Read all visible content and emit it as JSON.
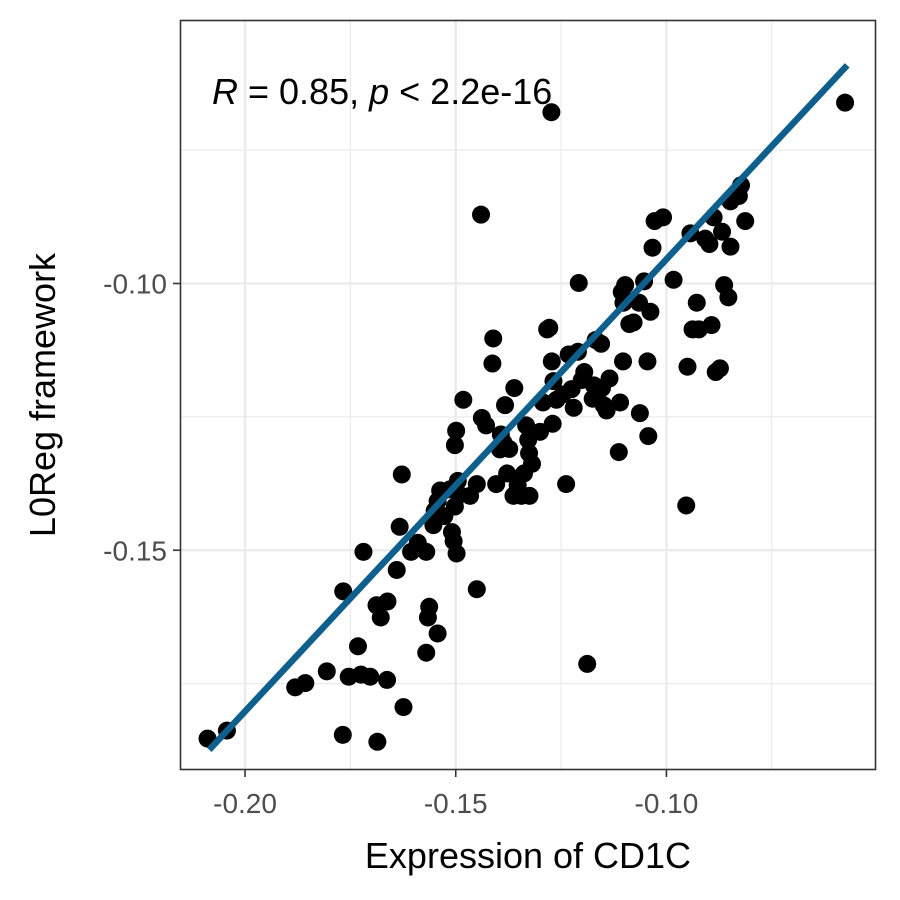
{
  "chart_data": {
    "type": "scatter",
    "title": "",
    "xlabel": "Expression of CD1C",
    "ylabel": "L0Reg framework",
    "annotation": {
      "r_symbol": "R",
      "r_text": " = 0.85, ",
      "p_symbol": "p",
      "p_text": " < 2.2e-16"
    },
    "xlim": [
      -0.2152,
      -0.0505
    ],
    "ylim": [
      -0.191,
      -0.0508
    ],
    "xticks": [
      -0.2,
      -0.15,
      -0.1
    ],
    "xtick_labels": [
      "-0.20",
      "-0.15",
      "-0.10"
    ],
    "yticks": [
      -0.15,
      -0.1
    ],
    "ytick_labels": [
      "-0.15",
      "-0.10"
    ],
    "grid": true,
    "legend": "none",
    "point_color": "#000000",
    "line_color": "#0e5f8c",
    "fit_line": {
      "x": [
        -0.2085,
        -0.0571
      ],
      "y": [
        -0.1874,
        -0.0591
      ]
    },
    "points": [
      [
        -0.2089,
        -0.1853
      ],
      [
        -0.2043,
        -0.1838
      ],
      [
        -0.1768,
        -0.1846
      ],
      [
        -0.1686,
        -0.1859
      ],
      [
        -0.1881,
        -0.1757
      ],
      [
        -0.1857,
        -0.1749
      ],
      [
        -0.1806,
        -0.1727
      ],
      [
        -0.1754,
        -0.1737
      ],
      [
        -0.1725,
        -0.1733
      ],
      [
        -0.1703,
        -0.1737
      ],
      [
        -0.1663,
        -0.1743
      ],
      [
        -0.1624,
        -0.1794
      ],
      [
        -0.1732,
        -0.168
      ],
      [
        -0.1767,
        -0.1577
      ],
      [
        -0.1719,
        -0.1503
      ],
      [
        -0.1688,
        -0.1603
      ],
      [
        -0.1678,
        -0.1626
      ],
      [
        -0.1662,
        -0.1596
      ],
      [
        -0.164,
        -0.1537
      ],
      [
        -0.1633,
        -0.1456
      ],
      [
        -0.1628,
        -0.1358
      ],
      [
        -0.1606,
        -0.1503
      ],
      [
        -0.159,
        -0.1486
      ],
      [
        -0.157,
        -0.1503
      ],
      [
        -0.157,
        -0.1692
      ],
      [
        -0.1566,
        -0.1626
      ],
      [
        -0.1563,
        -0.1606
      ],
      [
        -0.1543,
        -0.1656
      ],
      [
        -0.1553,
        -0.1453
      ],
      [
        -0.155,
        -0.1426
      ],
      [
        -0.1543,
        -0.1408
      ],
      [
        -0.1537,
        -0.1388
      ],
      [
        -0.1527,
        -0.1436
      ],
      [
        -0.1514,
        -0.1386
      ],
      [
        -0.1509,
        -0.1466
      ],
      [
        -0.1502,
        -0.1418
      ],
      [
        -0.1505,
        -0.1483
      ],
      [
        -0.1498,
        -0.1506
      ],
      [
        -0.1495,
        -0.137
      ],
      [
        -0.1491,
        -0.1396
      ],
      [
        -0.1502,
        -0.1303
      ],
      [
        -0.1499,
        -0.1276
      ],
      [
        -0.1482,
        -0.1218
      ],
      [
        -0.1466,
        -0.1398
      ],
      [
        -0.145,
        -0.1573
      ],
      [
        -0.145,
        -0.1376
      ],
      [
        -0.1438,
        -0.1252
      ],
      [
        -0.1428,
        -0.1266
      ],
      [
        -0.144,
        -0.0871
      ],
      [
        -0.1413,
        -0.115
      ],
      [
        -0.1411,
        -0.1103
      ],
      [
        -0.1404,
        -0.1376
      ],
      [
        -0.1395,
        -0.1311
      ],
      [
        -0.1393,
        -0.1283
      ],
      [
        -0.1387,
        -0.1298
      ],
      [
        -0.1383,
        -0.1228
      ],
      [
        -0.1378,
        -0.1356
      ],
      [
        -0.1373,
        -0.131
      ],
      [
        -0.1363,
        -0.1398
      ],
      [
        -0.1361,
        -0.1196
      ],
      [
        -0.1353,
        -0.1378
      ],
      [
        -0.1344,
        -0.1398
      ],
      [
        -0.1338,
        -0.1356
      ],
      [
        -0.1333,
        -0.1266
      ],
      [
        -0.1326,
        -0.1318
      ],
      [
        -0.1328,
        -0.1293
      ],
      [
        -0.1325,
        -0.1398
      ],
      [
        -0.1319,
        -0.1338
      ],
      [
        -0.13,
        -0.1278
      ],
      [
        -0.1293,
        -0.1223
      ],
      [
        -0.1283,
        -0.1086
      ],
      [
        -0.1278,
        -0.1083
      ],
      [
        -0.1272,
        -0.1146
      ],
      [
        -0.127,
        -0.1263
      ],
      [
        -0.1268,
        -0.1183
      ],
      [
        -0.1261,
        -0.1218
      ],
      [
        -0.1246,
        -0.1208
      ],
      [
        -0.1238,
        -0.1376
      ],
      [
        -0.1232,
        -0.1133
      ],
      [
        -0.1225,
        -0.1198
      ],
      [
        -0.122,
        -0.1233
      ],
      [
        -0.121,
        -0.1128
      ],
      [
        -0.1208,
        -0.0999
      ],
      [
        -0.1201,
        -0.1181
      ],
      [
        -0.1195,
        -0.1166
      ],
      [
        -0.1188,
        -0.1713
      ],
      [
        -0.1175,
        -0.1216
      ],
      [
        -0.1172,
        -0.1191
      ],
      [
        -0.1168,
        -0.1106
      ],
      [
        -0.1155,
        -0.1113
      ],
      [
        -0.1153,
        -0.1196
      ],
      [
        -0.1149,
        -0.1228
      ],
      [
        -0.1142,
        -0.1238
      ],
      [
        -0.1135,
        -0.1178
      ],
      [
        -0.1113,
        -0.1316
      ],
      [
        -0.111,
        -0.1223
      ],
      [
        -0.1103,
        -0.1146
      ],
      [
        -0.1106,
        -0.1016
      ],
      [
        -0.1102,
        -0.1036
      ],
      [
        -0.1098,
        -0.1003
      ],
      [
        -0.1088,
        -0.1076
      ],
      [
        -0.1078,
        -0.1073
      ],
      [
        -0.1065,
        -0.1036
      ],
      [
        -0.1063,
        -0.1243
      ],
      [
        -0.1053,
        -0.0996
      ],
      [
        -0.1045,
        -0.1146
      ],
      [
        -0.1043,
        -0.1286
      ],
      [
        -0.1038,
        -0.1053
      ],
      [
        -0.1033,
        -0.0933
      ],
      [
        -0.1028,
        -0.0883
      ],
      [
        -0.1008,
        -0.0876
      ],
      [
        -0.0983,
        -0.0993
      ],
      [
        -0.0953,
        -0.1416
      ],
      [
        -0.095,
        -0.1156
      ],
      [
        -0.0943,
        -0.0906
      ],
      [
        -0.0928,
        -0.1036
      ],
      [
        -0.0938,
        -0.1086
      ],
      [
        -0.0923,
        -0.1086
      ],
      [
        -0.0908,
        -0.0916
      ],
      [
        -0.0898,
        -0.0926
      ],
      [
        -0.0893,
        -0.1078
      ],
      [
        -0.0888,
        -0.0876
      ],
      [
        -0.0883,
        -0.1166
      ],
      [
        -0.0873,
        -0.1159
      ],
      [
        -0.0868,
        -0.0903
      ],
      [
        -0.0863,
        -0.1003
      ],
      [
        -0.0853,
        -0.1026
      ],
      [
        -0.0848,
        -0.0931
      ],
      [
        -0.0848,
        -0.0846
      ],
      [
        -0.0828,
        -0.0836
      ],
      [
        -0.0823,
        -0.0816
      ],
      [
        -0.0813,
        -0.0883
      ],
      [
        -0.1273,
        -0.0679
      ],
      [
        -0.0576,
        -0.0661
      ]
    ]
  }
}
